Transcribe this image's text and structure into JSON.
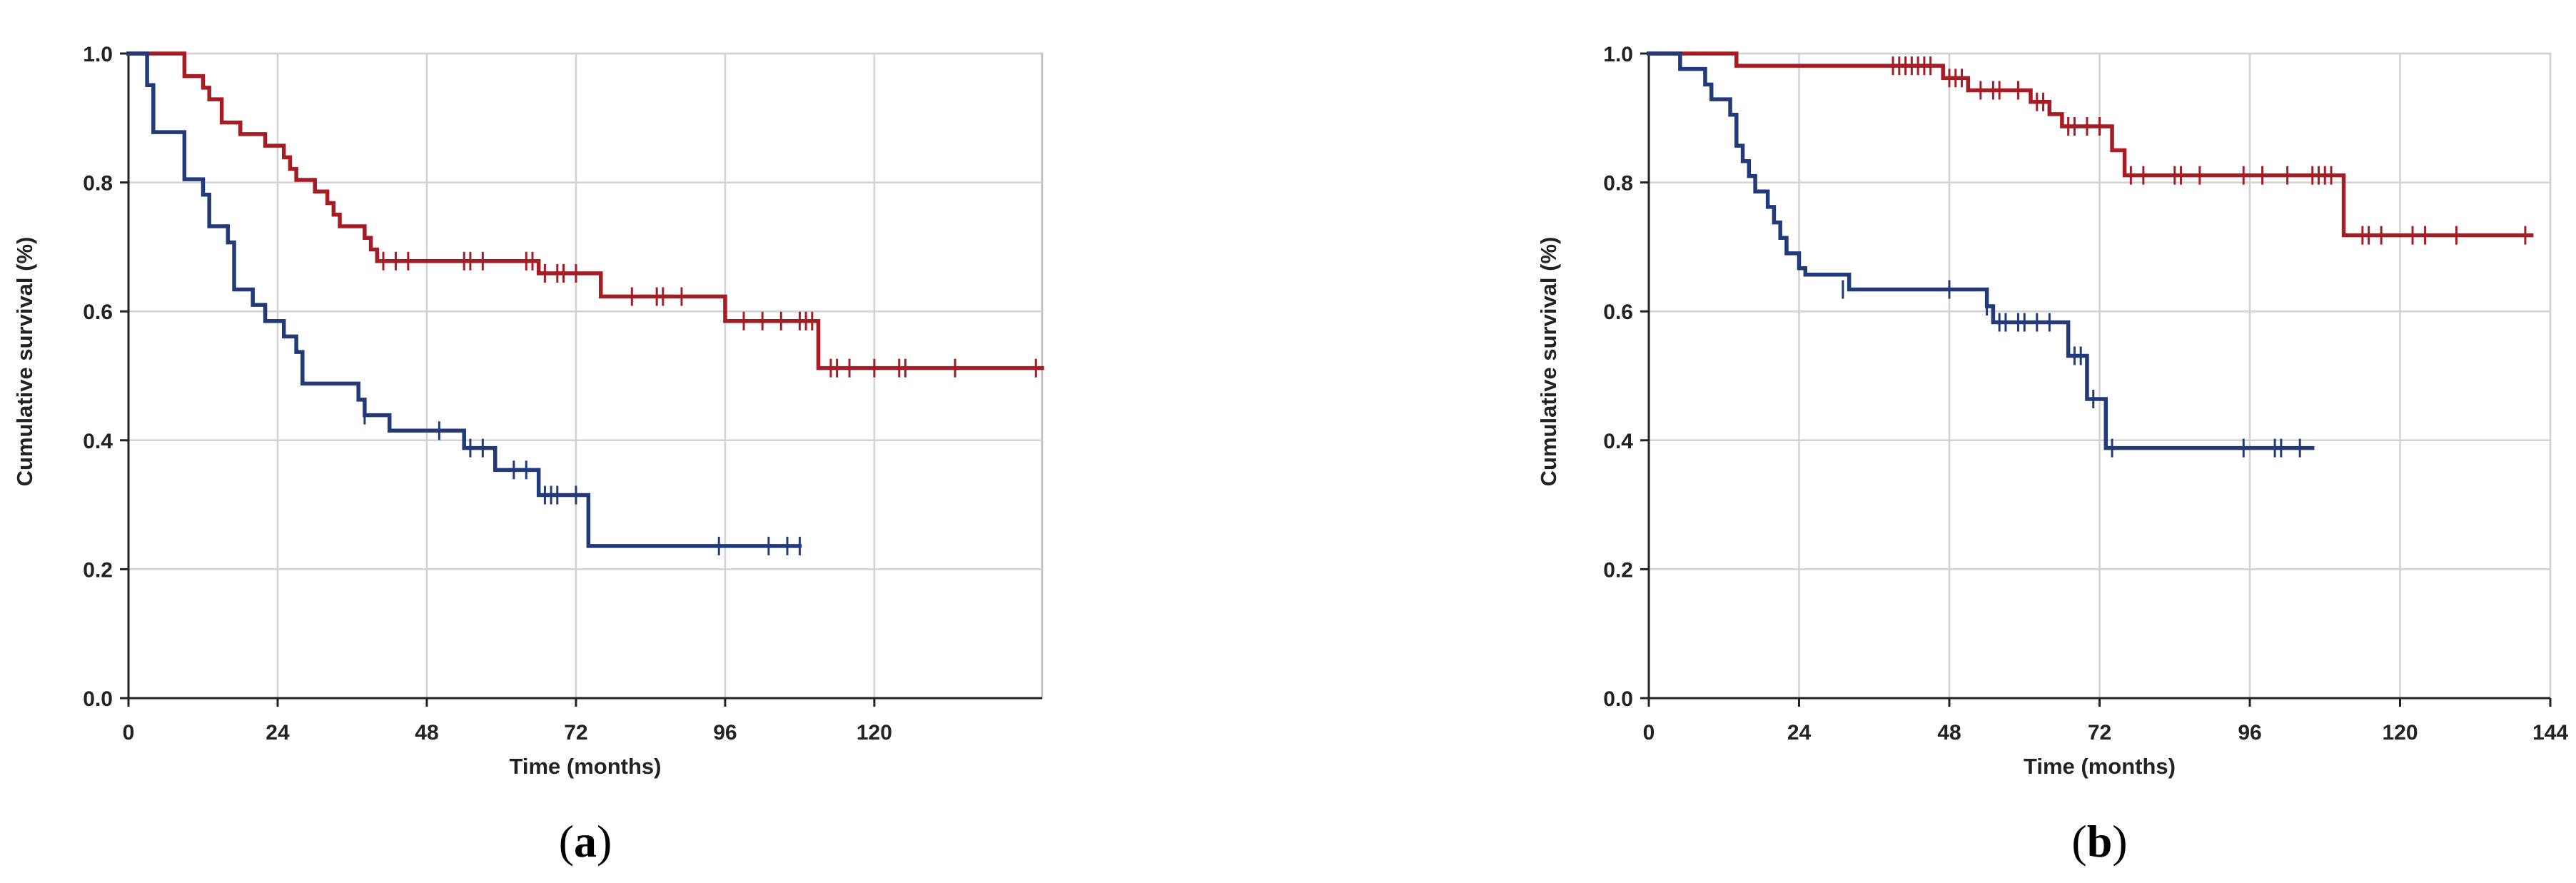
{
  "chart_data": [
    {
      "type": "line",
      "subtype": "kaplan-meier",
      "panel_label": "a",
      "xlabel": "Time (months)",
      "ylabel": "Cumulative survival (%)",
      "xlim": [
        0,
        147
      ],
      "ylim": [
        0,
        1.0
      ],
      "xticks": [
        0,
        24,
        48,
        72,
        96,
        120
      ],
      "yticks": [
        0.0,
        0.2,
        0.4,
        0.6,
        0.8,
        1.0
      ],
      "grid": true,
      "legend": "none",
      "series": [
        {
          "color": "#a51c24",
          "steps": [
            [
              0,
              1.0
            ],
            [
              9,
              0.965
            ],
            [
              12,
              0.947
            ],
            [
              13,
              0.929
            ],
            [
              15,
              0.893
            ],
            [
              18,
              0.875
            ],
            [
              22,
              0.857
            ],
            [
              25,
              0.839
            ],
            [
              26,
              0.821
            ],
            [
              27,
              0.804
            ],
            [
              30,
              0.786
            ],
            [
              32,
              0.768
            ],
            [
              33,
              0.75
            ],
            [
              34,
              0.732
            ],
            [
              38,
              0.714
            ],
            [
              39,
              0.696
            ],
            [
              40,
              0.678
            ],
            [
              66,
              0.659
            ],
            [
              76,
              0.623
            ],
            [
              96,
              0.585
            ],
            [
              111,
              0.512
            ],
            [
              147,
              0.512
            ]
          ],
          "censored": [
            [
              41,
              0.678
            ],
            [
              43,
              0.678
            ],
            [
              45,
              0.678
            ],
            [
              54,
              0.678
            ],
            [
              55,
              0.678
            ],
            [
              57,
              0.678
            ],
            [
              64,
              0.678
            ],
            [
              65,
              0.678
            ],
            [
              67,
              0.659
            ],
            [
              69,
              0.659
            ],
            [
              70,
              0.659
            ],
            [
              72,
              0.659
            ],
            [
              81,
              0.623
            ],
            [
              85,
              0.623
            ],
            [
              86,
              0.623
            ],
            [
              89,
              0.623
            ],
            [
              99,
              0.585
            ],
            [
              102,
              0.585
            ],
            [
              105,
              0.585
            ],
            [
              108,
              0.585
            ],
            [
              109,
              0.585
            ],
            [
              110,
              0.585
            ],
            [
              113,
              0.512
            ],
            [
              114,
              0.512
            ],
            [
              116,
              0.512
            ],
            [
              120,
              0.512
            ],
            [
              124,
              0.512
            ],
            [
              125,
              0.512
            ],
            [
              133,
              0.512
            ],
            [
              146,
              0.512
            ]
          ]
        },
        {
          "color": "#223a7a",
          "steps": [
            [
              0,
              1.0
            ],
            [
              3,
              0.951
            ],
            [
              4,
              0.878
            ],
            [
              9,
              0.805
            ],
            [
              12,
              0.781
            ],
            [
              13,
              0.732
            ],
            [
              16,
              0.707
            ],
            [
              17,
              0.634
            ],
            [
              20,
              0.61
            ],
            [
              22,
              0.585
            ],
            [
              25,
              0.561
            ],
            [
              27,
              0.537
            ],
            [
              28,
              0.488
            ],
            [
              37,
              0.463
            ],
            [
              38,
              0.439
            ],
            [
              42,
              0.415
            ],
            [
              54,
              0.388
            ],
            [
              59,
              0.354
            ],
            [
              66,
              0.315
            ],
            [
              74,
              0.236
            ],
            [
              108,
              0.236
            ]
          ],
          "censored": [
            [
              38,
              0.439
            ],
            [
              50,
              0.415
            ],
            [
              55,
              0.388
            ],
            [
              57,
              0.388
            ],
            [
              62,
              0.354
            ],
            [
              64,
              0.354
            ],
            [
              67,
              0.315
            ],
            [
              68,
              0.315
            ],
            [
              69,
              0.315
            ],
            [
              72,
              0.315
            ],
            [
              95,
              0.236
            ],
            [
              103,
              0.236
            ],
            [
              106,
              0.236
            ],
            [
              108,
              0.236
            ]
          ]
        }
      ]
    },
    {
      "type": "line",
      "subtype": "kaplan-meier",
      "panel_label": "b",
      "xlabel": "Time (months)",
      "ylabel": "Cumulative survival (%)",
      "xlim": [
        0,
        144
      ],
      "ylim": [
        0,
        1.0
      ],
      "xticks": [
        0,
        24,
        48,
        72,
        96,
        120,
        144
      ],
      "yticks": [
        0.0,
        0.2,
        0.4,
        0.6,
        0.8,
        1.0
      ],
      "grid": true,
      "legend": "none",
      "series": [
        {
          "color": "#a51c24",
          "steps": [
            [
              0,
              1.0
            ],
            [
              14,
              0.981
            ],
            [
              47,
              0.962
            ],
            [
              51,
              0.943
            ],
            [
              61,
              0.925
            ],
            [
              64,
              0.906
            ],
            [
              66,
              0.887
            ],
            [
              74,
              0.85
            ],
            [
              76,
              0.811
            ],
            [
              111,
              0.718
            ],
            [
              141,
              0.718
            ]
          ],
          "censored": [
            [
              39,
              0.981
            ],
            [
              40,
              0.981
            ],
            [
              41,
              0.981
            ],
            [
              42,
              0.981
            ],
            [
              43,
              0.981
            ],
            [
              44,
              0.981
            ],
            [
              45,
              0.981
            ],
            [
              48,
              0.962
            ],
            [
              49,
              0.962
            ],
            [
              50,
              0.962
            ],
            [
              53,
              0.943
            ],
            [
              55,
              0.943
            ],
            [
              56,
              0.943
            ],
            [
              59,
              0.943
            ],
            [
              62,
              0.925
            ],
            [
              63,
              0.925
            ],
            [
              67,
              0.887
            ],
            [
              68,
              0.887
            ],
            [
              70,
              0.887
            ],
            [
              72,
              0.887
            ],
            [
              77,
              0.811
            ],
            [
              79,
              0.811
            ],
            [
              84,
              0.811
            ],
            [
              85,
              0.811
            ],
            [
              88,
              0.811
            ],
            [
              95,
              0.811
            ],
            [
              98,
              0.811
            ],
            [
              102,
              0.811
            ],
            [
              106,
              0.811
            ],
            [
              107,
              0.811
            ],
            [
              108,
              0.811
            ],
            [
              109,
              0.811
            ],
            [
              114,
              0.718
            ],
            [
              115,
              0.718
            ],
            [
              117,
              0.718
            ],
            [
              122,
              0.718
            ],
            [
              124,
              0.718
            ],
            [
              129,
              0.718
            ],
            [
              140,
              0.718
            ]
          ]
        },
        {
          "color": "#223a7a",
          "steps": [
            [
              0,
              1.0
            ],
            [
              5,
              0.976
            ],
            [
              9,
              0.952
            ],
            [
              10,
              0.929
            ],
            [
              13,
              0.905
            ],
            [
              14,
              0.857
            ],
            [
              15,
              0.833
            ],
            [
              16,
              0.81
            ],
            [
              17,
              0.786
            ],
            [
              19,
              0.762
            ],
            [
              20,
              0.738
            ],
            [
              21,
              0.714
            ],
            [
              22,
              0.69
            ],
            [
              24,
              0.667
            ],
            [
              25,
              0.657
            ],
            [
              32,
              0.634
            ],
            [
              54,
              0.608
            ],
            [
              55,
              0.583
            ],
            [
              67,
              0.531
            ],
            [
              70,
              0.464
            ],
            [
              73,
              0.388
            ],
            [
              106,
              0.388
            ]
          ],
          "censored": [
            [
              31,
              0.634
            ],
            [
              48,
              0.634
            ],
            [
              54,
              0.608
            ],
            [
              56,
              0.583
            ],
            [
              57,
              0.583
            ],
            [
              59,
              0.583
            ],
            [
              60,
              0.583
            ],
            [
              62,
              0.583
            ],
            [
              64,
              0.583
            ],
            [
              68,
              0.531
            ],
            [
              69,
              0.531
            ],
            [
              71,
              0.464
            ],
            [
              74,
              0.388
            ],
            [
              95,
              0.388
            ],
            [
              100,
              0.388
            ],
            [
              101,
              0.388
            ],
            [
              104,
              0.388
            ]
          ]
        }
      ]
    }
  ]
}
